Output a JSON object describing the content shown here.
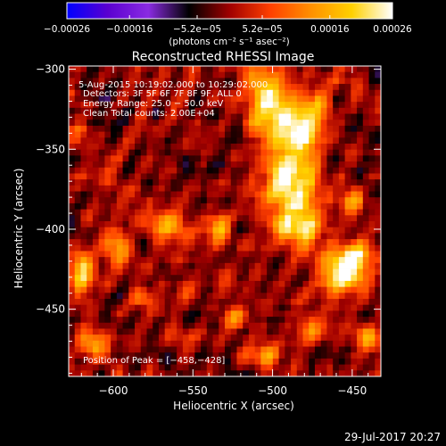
{
  "chart_data": {
    "type": "heatmap",
    "title": "Reconstructed RHESSI Image",
    "xlabel": "Heliocentric X (arcsec)",
    "ylabel": "Heliocentric Y (arcsec)",
    "xlim": [
      -628,
      -432
    ],
    "ylim": [
      -492,
      -298
    ],
    "x_ticks": [
      -600,
      -550,
      -500,
      -450
    ],
    "x_tick_labels": [
      "−600",
      "−550",
      "−500",
      "−450"
    ],
    "y_ticks": [
      -300,
      -350,
      -400,
      -450
    ],
    "y_tick_labels": [
      "−300",
      "−350",
      "−400",
      "−450"
    ],
    "colorbar": {
      "range": [
        -0.00026,
        0.00026
      ],
      "ticks": [
        -0.00026,
        -0.00016,
        -5.2e-05,
        5.2e-05,
        0.00016,
        0.00026
      ],
      "tick_labels": [
        "−0.00026",
        "−0.00016",
        "−5.2e−05",
        "5.2e−05",
        "0.00016",
        "0.00026"
      ],
      "label": "(photons cm⁻² s⁻¹ asec⁻²)",
      "colors": [
        "#0000ff",
        "#5a00d0",
        "#8a2be2",
        "#000000",
        "#a00000",
        "#ff4000",
        "#ff9000",
        "#ffd000",
        "#ffffff"
      ]
    },
    "annotations": [
      "5-Aug-2015 10:19:02.000 to 10:29:02.000",
      "Detectors: 3F 5F 6F 7F 8F 9F, ALL 0",
      "Energy Range: 25.0 − 50.0 keV",
      "Clean    Total counts: 2.00E+04"
    ],
    "peak_label": "Position of Peak = [−458,−428]",
    "peak": [
      -458,
      -428
    ],
    "grid": false,
    "sources": [
      {
        "x": -488,
        "y": -370,
        "amp": 1.0,
        "sx": 12,
        "sy": 22
      },
      {
        "x": -503,
        "y": -318,
        "amp": 0.95,
        "sx": 9,
        "sy": 16
      },
      {
        "x": -482,
        "y": -335,
        "amp": 0.75,
        "sx": 8,
        "sy": 10
      },
      {
        "x": -458,
        "y": -428,
        "amp": 1.0,
        "sx": 9,
        "sy": 9
      },
      {
        "x": -447,
        "y": -417,
        "amp": 0.7,
        "sx": 7,
        "sy": 8
      },
      {
        "x": -478,
        "y": -398,
        "amp": 0.55,
        "sx": 6,
        "sy": 7
      },
      {
        "x": -492,
        "y": -400,
        "amp": 0.5,
        "sx": 5,
        "sy": 5
      },
      {
        "x": -567,
        "y": -398,
        "amp": 0.7,
        "sx": 8,
        "sy": 6
      },
      {
        "x": -533,
        "y": -400,
        "amp": 0.6,
        "sx": 6,
        "sy": 6
      },
      {
        "x": -598,
        "y": -410,
        "amp": 0.55,
        "sx": 7,
        "sy": 7
      },
      {
        "x": -620,
        "y": -428,
        "amp": 0.75,
        "sx": 5,
        "sy": 12
      },
      {
        "x": -612,
        "y": -472,
        "amp": 0.65,
        "sx": 7,
        "sy": 6
      },
      {
        "x": -582,
        "y": -444,
        "amp": 0.5,
        "sx": 6,
        "sy": 5
      },
      {
        "x": -555,
        "y": -440,
        "amp": 0.45,
        "sx": 5,
        "sy": 5
      },
      {
        "x": -523,
        "y": -455,
        "amp": 0.5,
        "sx": 6,
        "sy": 5
      },
      {
        "x": -505,
        "y": -478,
        "amp": 0.55,
        "sx": 8,
        "sy": 5
      },
      {
        "x": -476,
        "y": -462,
        "amp": 0.45,
        "sx": 6,
        "sy": 6
      },
      {
        "x": -440,
        "y": -468,
        "amp": 0.5,
        "sx": 5,
        "sy": 7
      },
      {
        "x": -450,
        "y": -382,
        "amp": 0.55,
        "sx": 5,
        "sy": 7
      },
      {
        "x": -470,
        "y": -318,
        "amp": 0.5,
        "sx": 5,
        "sy": 5
      },
      {
        "x": -620,
        "y": -340,
        "amp": 0.35,
        "sx": 5,
        "sy": 5
      }
    ]
  },
  "footer": {
    "timestamp": "29-Jul-2017 20:27"
  }
}
